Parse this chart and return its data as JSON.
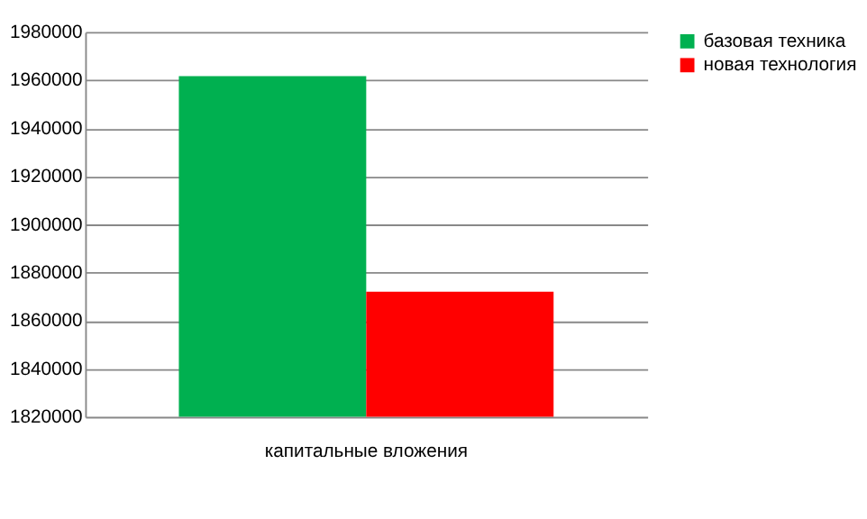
{
  "chart_data": {
    "type": "bar",
    "categories": [
      "капитальные вложения"
    ],
    "series": [
      {
        "name": "базовая техника",
        "color": "#00b050",
        "values": [
          1961600
        ]
      },
      {
        "name": "новая технология",
        "color": "#ff0000",
        "values": [
          1872000
        ]
      }
    ],
    "ylim": [
      1820000,
      1980000
    ],
    "yticks": [
      1820000,
      1840000,
      1860000,
      1880000,
      1900000,
      1920000,
      1940000,
      1960000,
      1980000
    ],
    "grid": "y",
    "legend": "right"
  }
}
